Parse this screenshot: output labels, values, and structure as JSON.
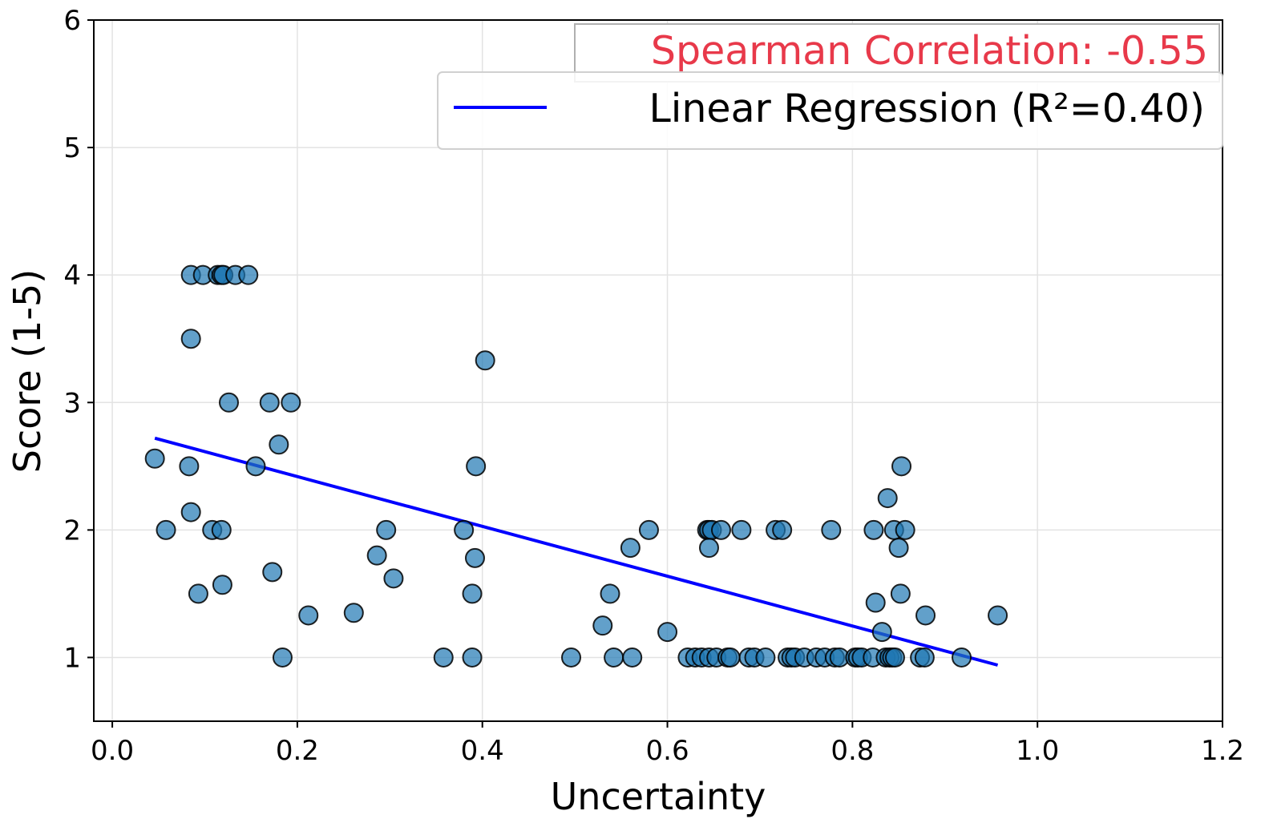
{
  "chart_data": {
    "type": "scatter",
    "xlabel": "Uncertainty",
    "ylabel": "Score (1-5)",
    "xlim": [
      -0.02,
      1.2
    ],
    "ylim": [
      0.5,
      6
    ],
    "xticks": [
      0.0,
      0.2,
      0.4,
      0.6,
      0.8,
      1.0,
      1.2
    ],
    "xtick_labels": [
      "0.0",
      "0.2",
      "0.4",
      "0.6",
      "0.8",
      "1.0",
      "1.2"
    ],
    "yticks": [
      1,
      2,
      3,
      4,
      5,
      6
    ],
    "ytick_labels": [
      "1",
      "2",
      "3",
      "4",
      "5",
      "6"
    ],
    "grid": true,
    "point_color": "#1f77b4",
    "line_color": "#0000ff",
    "annotation_color": "#e8394a",
    "annotation": "Spearman Correlation: -0.55",
    "legend": {
      "placement": "top-right",
      "entries": [
        "Linear Regression (R²=0.40)"
      ]
    },
    "regression": {
      "x": [
        0.046,
        0.957
      ],
      "y": [
        2.72,
        0.94
      ]
    },
    "points": [
      {
        "x": 0.085,
        "y": 4
      },
      {
        "x": 0.098,
        "y": 4
      },
      {
        "x": 0.114,
        "y": 4
      },
      {
        "x": 0.118,
        "y": 4
      },
      {
        "x": 0.12,
        "y": 4
      },
      {
        "x": 0.133,
        "y": 4
      },
      {
        "x": 0.147,
        "y": 4
      },
      {
        "x": 0.085,
        "y": 3.5
      },
      {
        "x": 0.126,
        "y": 3
      },
      {
        "x": 0.17,
        "y": 3
      },
      {
        "x": 0.193,
        "y": 3
      },
      {
        "x": 0.18,
        "y": 2.67
      },
      {
        "x": 0.046,
        "y": 2.56
      },
      {
        "x": 0.083,
        "y": 2.5
      },
      {
        "x": 0.155,
        "y": 2.5
      },
      {
        "x": 0.085,
        "y": 2.14
      },
      {
        "x": 0.058,
        "y": 2
      },
      {
        "x": 0.108,
        "y": 2
      },
      {
        "x": 0.118,
        "y": 2
      },
      {
        "x": 0.173,
        "y": 1.67
      },
      {
        "x": 0.119,
        "y": 1.57
      },
      {
        "x": 0.093,
        "y": 1.5
      },
      {
        "x": 0.184,
        "y": 1
      },
      {
        "x": 0.212,
        "y": 1.33
      },
      {
        "x": 0.261,
        "y": 1.35
      },
      {
        "x": 0.286,
        "y": 1.8
      },
      {
        "x": 0.296,
        "y": 2
      },
      {
        "x": 0.304,
        "y": 1.62
      },
      {
        "x": 0.358,
        "y": 1
      },
      {
        "x": 0.38,
        "y": 2
      },
      {
        "x": 0.389,
        "y": 1.5
      },
      {
        "x": 0.389,
        "y": 1
      },
      {
        "x": 0.392,
        "y": 1.78
      },
      {
        "x": 0.393,
        "y": 2.5
      },
      {
        "x": 0.403,
        "y": 3.33
      },
      {
        "x": 0.496,
        "y": 1
      },
      {
        "x": 0.53,
        "y": 1.25
      },
      {
        "x": 0.538,
        "y": 1.5
      },
      {
        "x": 0.542,
        "y": 1
      },
      {
        "x": 0.562,
        "y": 1
      },
      {
        "x": 0.56,
        "y": 1.86
      },
      {
        "x": 0.58,
        "y": 2
      },
      {
        "x": 0.6,
        "y": 1.2
      },
      {
        "x": 0.622,
        "y": 1
      },
      {
        "x": 0.63,
        "y": 1
      },
      {
        "x": 0.637,
        "y": 1
      },
      {
        "x": 0.645,
        "y": 1
      },
      {
        "x": 0.653,
        "y": 1
      },
      {
        "x": 0.643,
        "y": 2
      },
      {
        "x": 0.645,
        "y": 2
      },
      {
        "x": 0.648,
        "y": 2
      },
      {
        "x": 0.658,
        "y": 2
      },
      {
        "x": 0.645,
        "y": 1.86
      },
      {
        "x": 0.665,
        "y": 1
      },
      {
        "x": 0.668,
        "y": 1
      },
      {
        "x": 0.68,
        "y": 2
      },
      {
        "x": 0.688,
        "y": 1
      },
      {
        "x": 0.694,
        "y": 1
      },
      {
        "x": 0.706,
        "y": 1
      },
      {
        "x": 0.717,
        "y": 2
      },
      {
        "x": 0.724,
        "y": 2
      },
      {
        "x": 0.73,
        "y": 1
      },
      {
        "x": 0.734,
        "y": 1
      },
      {
        "x": 0.738,
        "y": 1
      },
      {
        "x": 0.748,
        "y": 1
      },
      {
        "x": 0.761,
        "y": 1
      },
      {
        "x": 0.77,
        "y": 1
      },
      {
        "x": 0.777,
        "y": 2
      },
      {
        "x": 0.781,
        "y": 1
      },
      {
        "x": 0.786,
        "y": 1
      },
      {
        "x": 0.803,
        "y": 1
      },
      {
        "x": 0.806,
        "y": 1
      },
      {
        "x": 0.81,
        "y": 1
      },
      {
        "x": 0.822,
        "y": 1
      },
      {
        "x": 0.823,
        "y": 2
      },
      {
        "x": 0.825,
        "y": 1.43
      },
      {
        "x": 0.832,
        "y": 1.2
      },
      {
        "x": 0.836,
        "y": 1
      },
      {
        "x": 0.838,
        "y": 2.25
      },
      {
        "x": 0.84,
        "y": 1
      },
      {
        "x": 0.843,
        "y": 1
      },
      {
        "x": 0.845,
        "y": 2
      },
      {
        "x": 0.846,
        "y": 1
      },
      {
        "x": 0.85,
        "y": 1.86
      },
      {
        "x": 0.852,
        "y": 1.5
      },
      {
        "x": 0.853,
        "y": 2.5
      },
      {
        "x": 0.857,
        "y": 2
      },
      {
        "x": 0.873,
        "y": 1
      },
      {
        "x": 0.878,
        "y": 1
      },
      {
        "x": 0.879,
        "y": 1.33
      },
      {
        "x": 0.918,
        "y": 1
      },
      {
        "x": 0.957,
        "y": 1.33
      }
    ]
  }
}
